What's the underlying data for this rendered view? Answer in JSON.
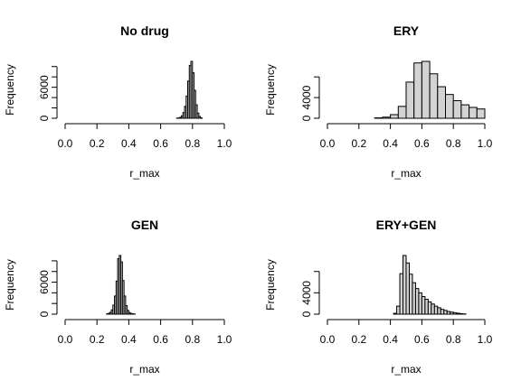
{
  "chart_data": [
    {
      "type": "bar",
      "title": "No drug",
      "xlabel": "r_max",
      "ylabel": "Frequency",
      "xlim": [
        0,
        1
      ],
      "ylim": [
        0,
        11000
      ],
      "x_ticks": [
        "0.0",
        "0.2",
        "0.4",
        "0.6",
        "0.8",
        "1.0"
      ],
      "y_ticks": [
        "0",
        "6000"
      ],
      "bin_width": 0.01,
      "bins": [
        [
          0.7,
          0.71,
          30
        ],
        [
          0.71,
          0.72,
          60
        ],
        [
          0.72,
          0.73,
          180
        ],
        [
          0.73,
          0.74,
          480
        ],
        [
          0.74,
          0.75,
          1100
        ],
        [
          0.75,
          0.76,
          2300
        ],
        [
          0.76,
          0.77,
          4300
        ],
        [
          0.77,
          0.78,
          7200
        ],
        [
          0.78,
          0.79,
          10200
        ],
        [
          0.79,
          0.8,
          11000
        ],
        [
          0.8,
          0.81,
          8800
        ],
        [
          0.81,
          0.82,
          5400
        ],
        [
          0.82,
          0.83,
          2600
        ],
        [
          0.83,
          0.84,
          1000
        ],
        [
          0.84,
          0.85,
          350
        ],
        [
          0.85,
          0.86,
          80
        ]
      ]
    },
    {
      "type": "bar",
      "title": "ERY",
      "xlabel": "r_max",
      "ylabel": "Frequency",
      "xlim": [
        0,
        1
      ],
      "ylim": [
        0,
        11000
      ],
      "x_ticks": [
        "0.0",
        "0.2",
        "0.4",
        "0.6",
        "0.8",
        "1.0"
      ],
      "y_ticks": [
        "0",
        "4000"
      ],
      "bin_width": 0.05,
      "bins": [
        [
          0.3,
          0.35,
          80
        ],
        [
          0.35,
          0.4,
          220
        ],
        [
          0.4,
          0.45,
          700
        ],
        [
          0.45,
          0.5,
          2300
        ],
        [
          0.5,
          0.55,
          7000
        ],
        [
          0.55,
          0.6,
          10700
        ],
        [
          0.6,
          0.65,
          11000
        ],
        [
          0.65,
          0.7,
          8600
        ],
        [
          0.7,
          0.75,
          6100
        ],
        [
          0.75,
          0.8,
          4600
        ],
        [
          0.8,
          0.85,
          3400
        ],
        [
          0.85,
          0.9,
          2600
        ],
        [
          0.9,
          0.95,
          2100
        ],
        [
          0.95,
          1.0,
          1800
        ]
      ]
    },
    {
      "type": "bar",
      "title": "GEN",
      "xlabel": "r_max",
      "ylabel": "Frequency",
      "xlim": [
        0,
        1
      ],
      "ylim": [
        0,
        11000
      ],
      "x_ticks": [
        "0.0",
        "0.2",
        "0.4",
        "0.6",
        "0.8",
        "1.0"
      ],
      "y_ticks": [
        "0",
        "6000"
      ],
      "bin_width": 0.01,
      "bins": [
        [
          0.26,
          0.27,
          60
        ],
        [
          0.27,
          0.28,
          150
        ],
        [
          0.28,
          0.29,
          350
        ],
        [
          0.29,
          0.3,
          800
        ],
        [
          0.3,
          0.31,
          1700
        ],
        [
          0.31,
          0.32,
          3400
        ],
        [
          0.32,
          0.33,
          6200
        ],
        [
          0.33,
          0.34,
          10400
        ],
        [
          0.34,
          0.35,
          11000
        ],
        [
          0.35,
          0.36,
          9800
        ],
        [
          0.36,
          0.37,
          6300
        ],
        [
          0.37,
          0.38,
          3400
        ],
        [
          0.38,
          0.39,
          1600
        ],
        [
          0.39,
          0.4,
          700
        ],
        [
          0.4,
          0.41,
          300
        ],
        [
          0.41,
          0.42,
          130
        ],
        [
          0.42,
          0.43,
          60
        ],
        [
          0.43,
          0.44,
          30
        ]
      ]
    },
    {
      "type": "bar",
      "title": "ERY+GEN",
      "xlabel": "r_max",
      "ylabel": "Frequency",
      "xlim": [
        0,
        1
      ],
      "ylim": [
        0,
        11000
      ],
      "x_ticks": [
        "0.0",
        "0.2",
        "0.4",
        "0.6",
        "0.8",
        "1.0"
      ],
      "y_ticks": [
        "0",
        "4000"
      ],
      "bin_width": 0.02,
      "bins": [
        [
          0.42,
          0.44,
          150
        ],
        [
          0.44,
          0.46,
          1500
        ],
        [
          0.46,
          0.48,
          7600
        ],
        [
          0.48,
          0.5,
          11000
        ],
        [
          0.5,
          0.52,
          9600
        ],
        [
          0.52,
          0.54,
          7500
        ],
        [
          0.54,
          0.56,
          5900
        ],
        [
          0.56,
          0.58,
          4800
        ],
        [
          0.58,
          0.6,
          4000
        ],
        [
          0.6,
          0.62,
          3300
        ],
        [
          0.62,
          0.64,
          2800
        ],
        [
          0.64,
          0.66,
          2300
        ],
        [
          0.66,
          0.68,
          1900
        ],
        [
          0.68,
          0.7,
          1500
        ],
        [
          0.7,
          0.72,
          1200
        ],
        [
          0.72,
          0.74,
          900
        ],
        [
          0.74,
          0.76,
          700
        ],
        [
          0.76,
          0.78,
          500
        ],
        [
          0.78,
          0.8,
          380
        ],
        [
          0.8,
          0.82,
          270
        ],
        [
          0.82,
          0.84,
          180
        ],
        [
          0.84,
          0.86,
          100
        ],
        [
          0.86,
          0.88,
          40
        ]
      ]
    }
  ]
}
